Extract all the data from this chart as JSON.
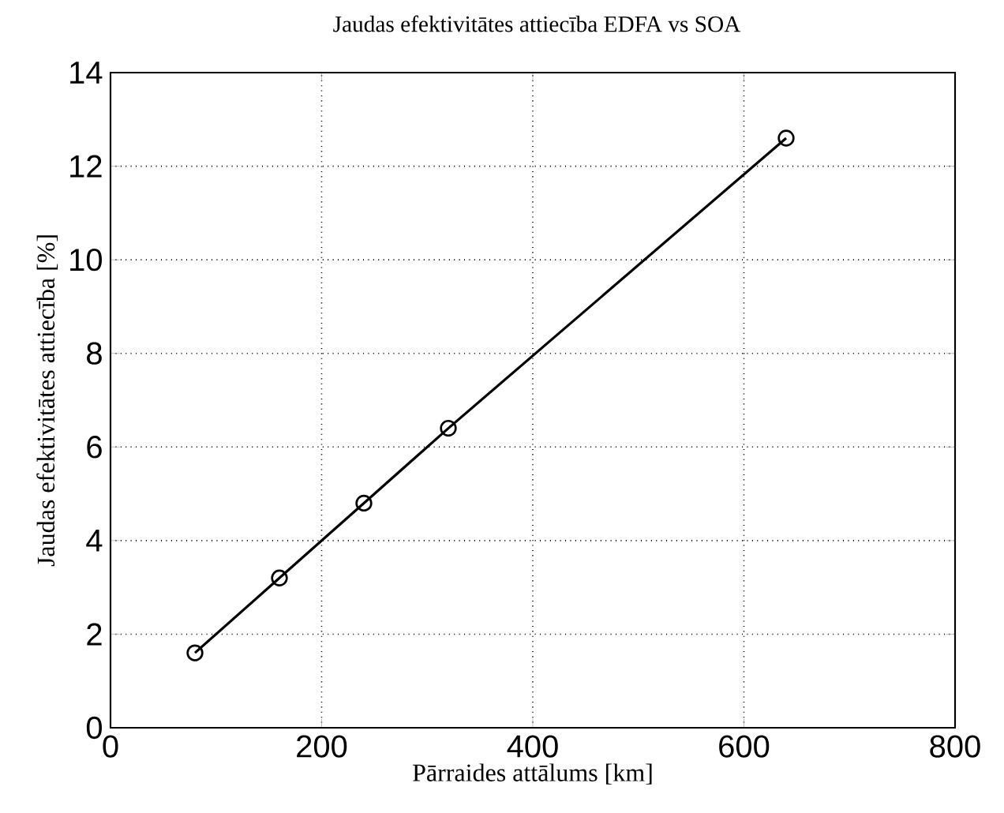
{
  "chart_data": {
    "type": "line",
    "title": "Jaudas efektivitātes attiecība EDFA vs SOA",
    "xlabel": "Pārraides attālums [km]",
    "ylabel": "Jaudas efektivitātes attiecība [%]",
    "x": [
      80,
      160,
      240,
      320,
      640
    ],
    "series": [
      {
        "color": "#000000",
        "values": [
          1.6,
          3.2,
          4.8,
          6.4,
          12.6
        ]
      }
    ],
    "xlim": [
      0,
      800
    ],
    "xticks": [
      0,
      200,
      400,
      600,
      800
    ],
    "ylim": [
      0,
      14
    ],
    "yticks": [
      0,
      2,
      4,
      6,
      8,
      10,
      12,
      14
    ],
    "grid": true,
    "marker": "circle",
    "line_style": "solid"
  }
}
